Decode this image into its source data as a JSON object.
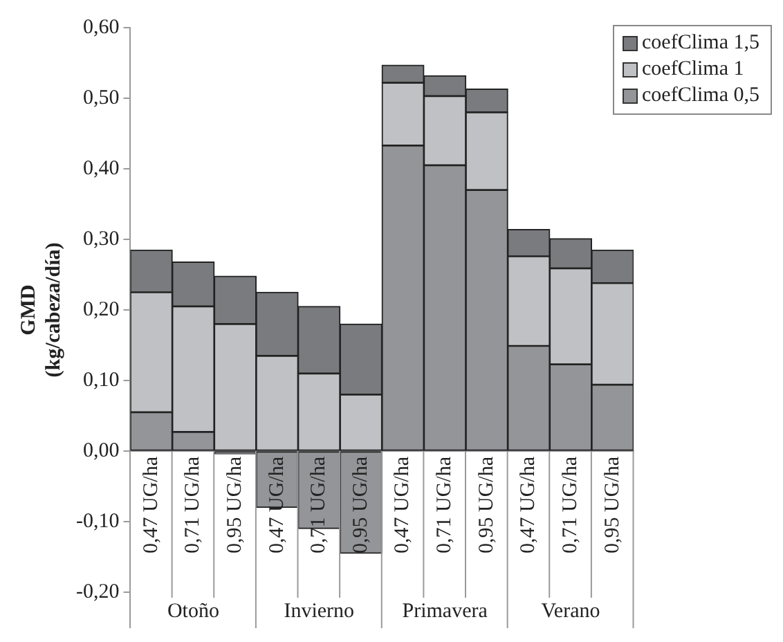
{
  "chart_data": {
    "type": "bar",
    "stacked": true,
    "ylabel": "GMD (kg/cabeza/día)",
    "categories": [
      "0,47 UG/ha",
      "0,71 UG/ha",
      "0,95 UG/ha",
      "0,47 UG/ha",
      "0,71 UG/ha",
      "0,95 UG/ha",
      "0,47 UG/ha",
      "0,71 UG/ha",
      "0,95 UG/ha",
      "0,47 UG/ha",
      "0,71 UG/ha",
      "0,95 UG/ha"
    ],
    "annotations": [
      "Otoño",
      "Invierno",
      "Primavera",
      "Verano"
    ],
    "series": [
      {
        "name": "coefClima 0,5",
        "color": "#939598",
        "values": [
          0.055,
          0.027,
          -0.004,
          -0.08,
          -0.11,
          -0.145,
          0.433,
          0.405,
          0.37,
          0.149,
          0.123,
          0.094
        ]
      },
      {
        "name": "coefClima 1",
        "color": "#c0c1c4",
        "values": [
          0.17,
          0.178,
          0.18,
          0.135,
          0.11,
          0.08,
          0.089,
          0.098,
          0.11,
          0.127,
          0.136,
          0.144
        ]
      },
      {
        "name": "coefClima 1,5",
        "color": "#7a7b7e",
        "values": [
          0.06,
          0.063,
          0.068,
          0.09,
          0.095,
          0.1,
          0.025,
          0.029,
          0.033,
          0.038,
          0.042,
          0.047
        ]
      }
    ],
    "ylim": [
      -0.2,
      0.6
    ],
    "yticks": [
      {
        "value": -0.2,
        "label": "-0,20"
      },
      {
        "value": -0.1,
        "label": "-0,10"
      },
      {
        "value": 0,
        "label": "0,00"
      },
      {
        "value": 0.1,
        "label": "0,10"
      },
      {
        "value": 0.2,
        "label": "0,20"
      },
      {
        "value": 0.3,
        "label": "0,30"
      },
      {
        "value": 0.4,
        "label": "0,40"
      },
      {
        "value": 0.5,
        "label": "0,50"
      },
      {
        "value": 0.6,
        "label": "0,60"
      }
    ],
    "grid": false,
    "legend": "top right"
  }
}
